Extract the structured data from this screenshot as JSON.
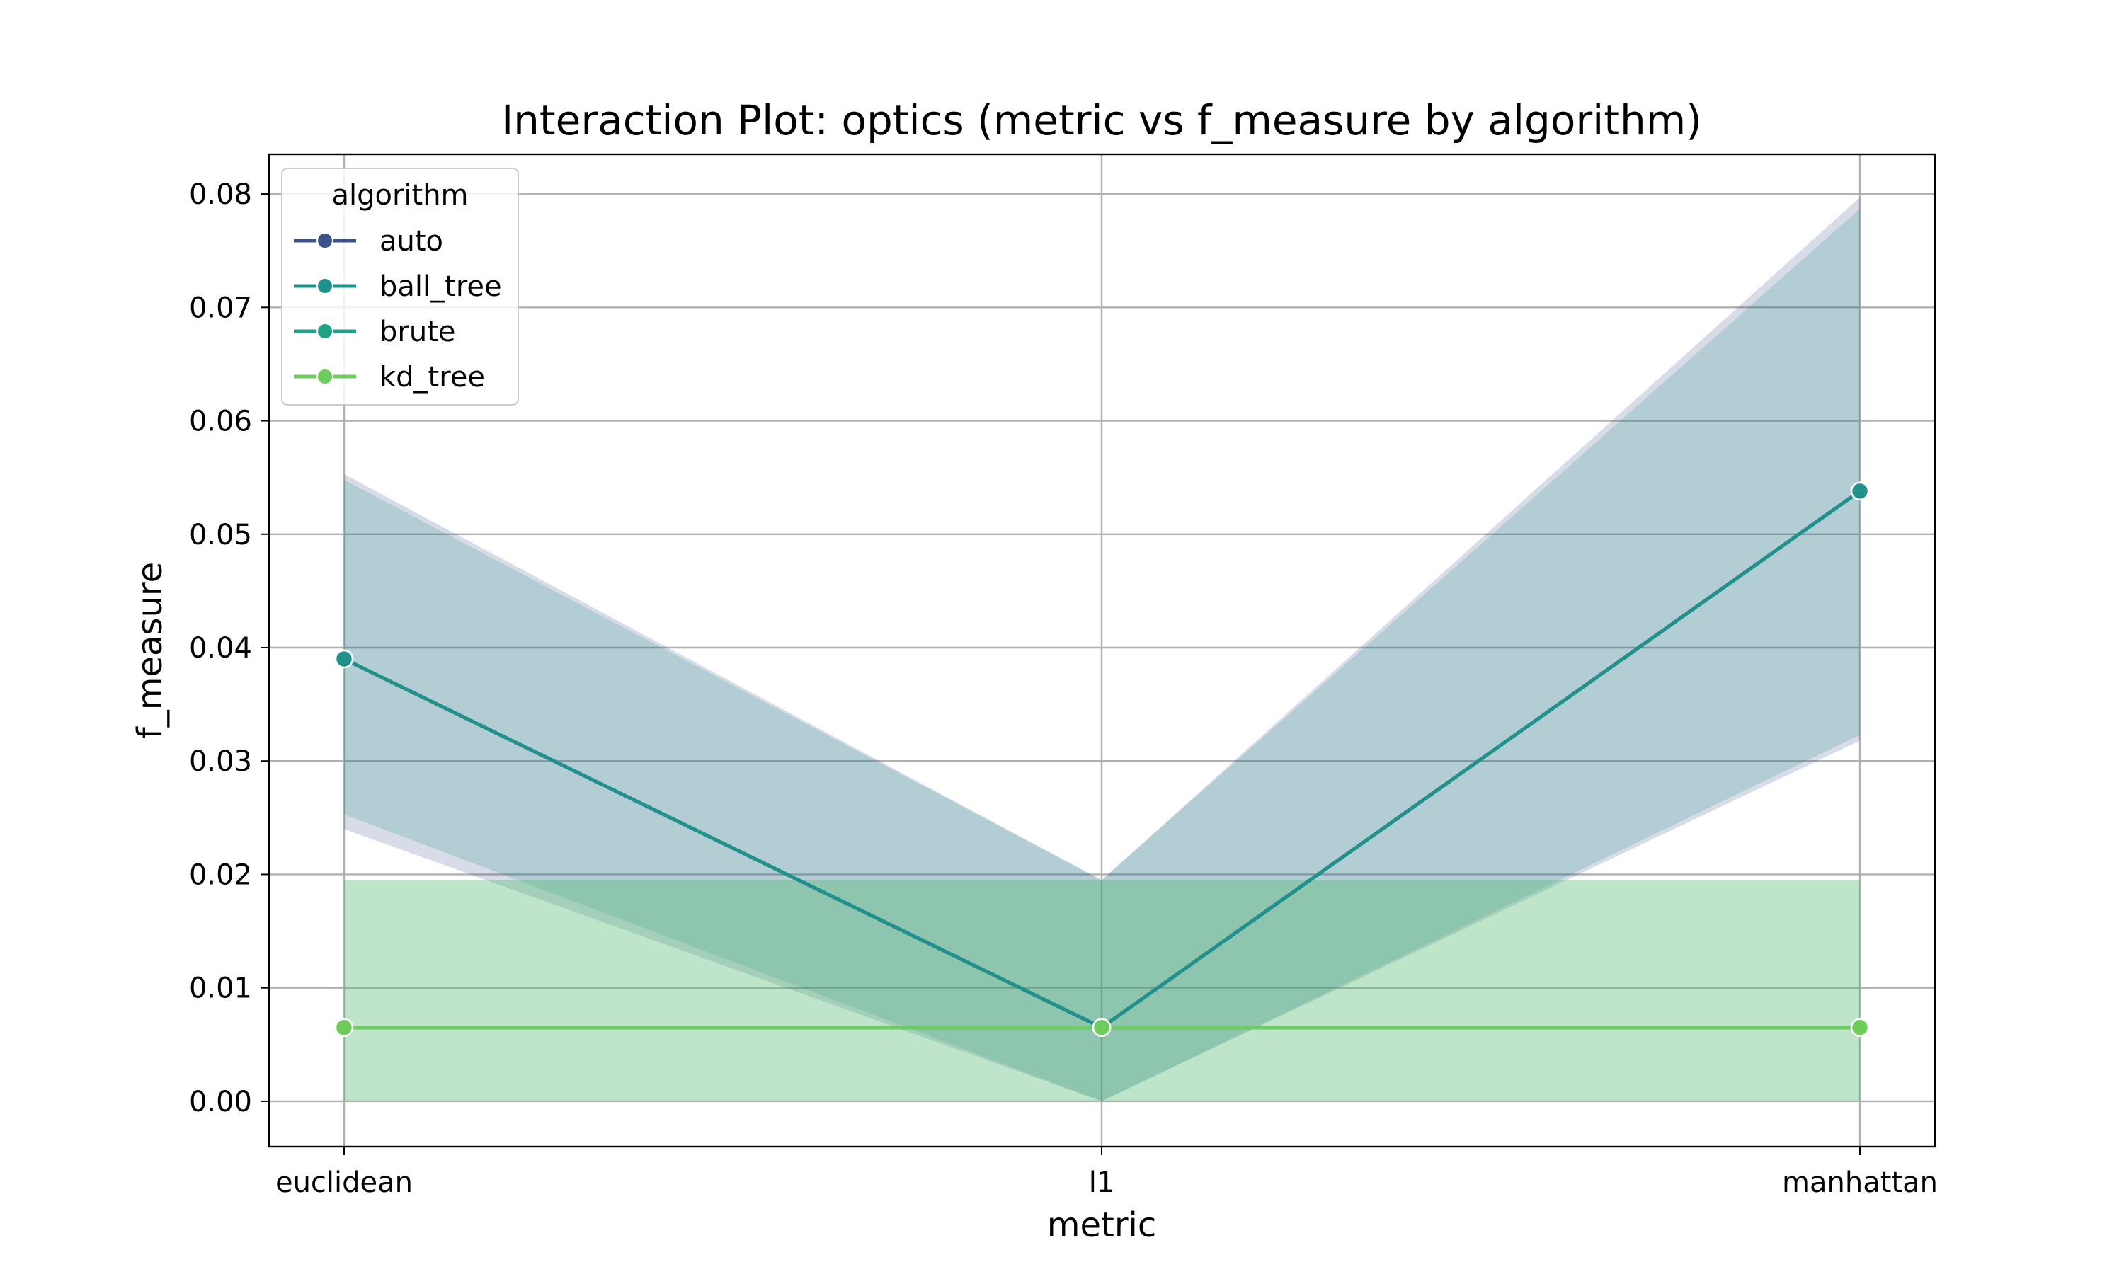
{
  "chart_data": {
    "type": "line",
    "title": "Interaction Plot: optics (metric vs f_measure by algorithm)",
    "xlabel": "metric",
    "ylabel": "f_measure",
    "categories": [
      "euclidean",
      "l1",
      "manhattan"
    ],
    "ylim": [
      -0.004,
      0.0835
    ],
    "yticks": [
      0.0,
      0.01,
      0.02,
      0.03,
      0.04,
      0.05,
      0.06,
      0.07,
      0.08
    ],
    "ytick_labels": [
      "0.00",
      "0.01",
      "0.02",
      "0.03",
      "0.04",
      "0.05",
      "0.06",
      "0.07",
      "0.08"
    ],
    "grid": true,
    "legend": {
      "title": "algorithm",
      "position": "top-left"
    },
    "series": [
      {
        "name": "auto",
        "color": "#3b528b",
        "values": [
          0.039,
          0.0065,
          0.0538
        ],
        "ci_low": [
          0.024,
          0.0,
          0.0318
        ],
        "ci_high": [
          0.0553,
          0.0195,
          0.0797
        ]
      },
      {
        "name": "ball_tree",
        "color": "#21918c",
        "values": [
          0.039,
          0.0065,
          0.0538
        ],
        "ci_low": [
          0.0253,
          0.0,
          0.0323
        ],
        "ci_high": [
          0.0548,
          0.0195,
          0.0787
        ]
      },
      {
        "name": "brute",
        "color": "#1fa187",
        "values": [
          0.0065,
          0.0065,
          0.0065
        ],
        "ci_low": [
          0.0,
          0.0,
          0.0
        ],
        "ci_high": [
          0.0195,
          0.0195,
          0.0195
        ]
      },
      {
        "name": "kd_tree",
        "color": "#6ccd5a",
        "values": [
          0.0065,
          0.0065,
          0.0065
        ],
        "ci_low": [
          0.0,
          0.0,
          0.0
        ],
        "ci_high": [
          0.0195,
          0.0195,
          0.0195
        ]
      }
    ]
  }
}
